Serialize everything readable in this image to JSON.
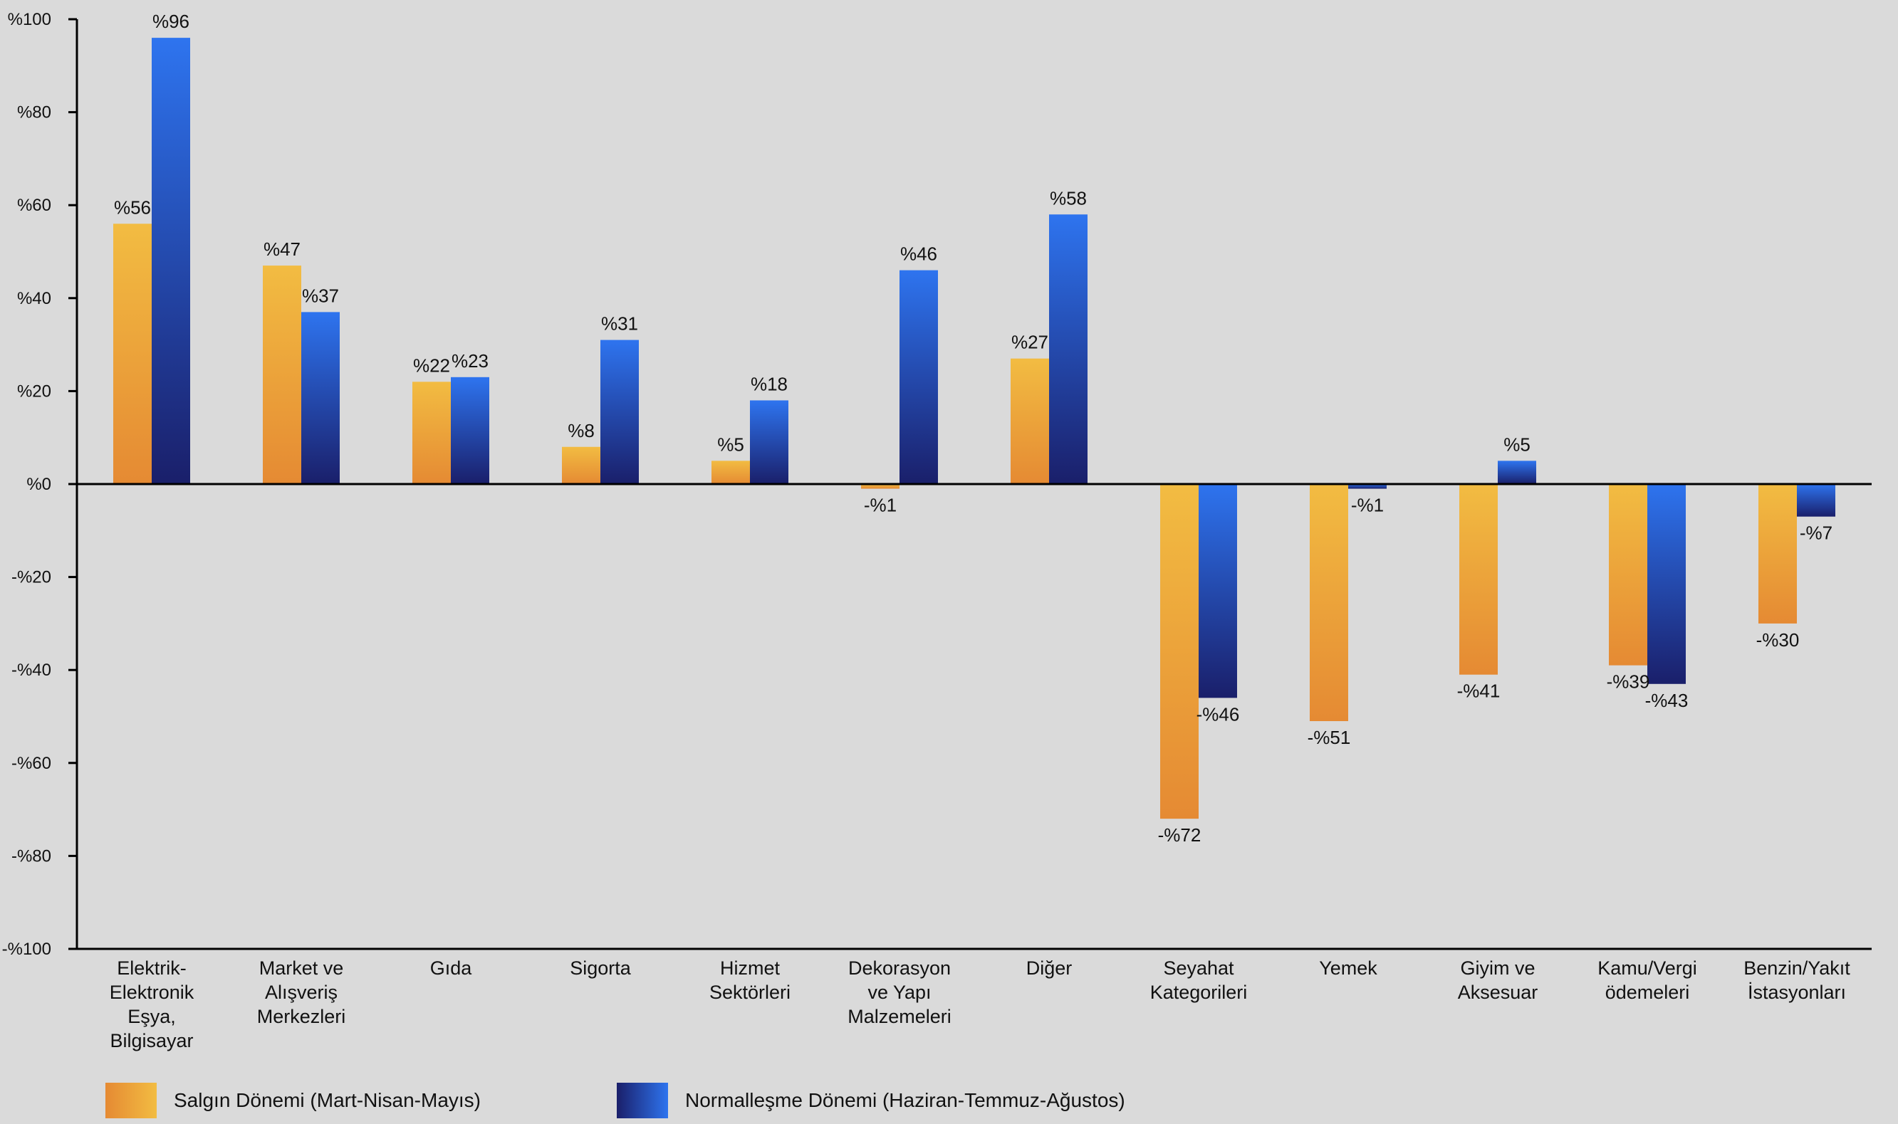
{
  "chart_data": {
    "type": "bar",
    "title": "",
    "xlabel": "",
    "ylabel": "",
    "ylim": [
      -100,
      100
    ],
    "y_ticks": [
      {
        "value": 100,
        "label": "%100"
      },
      {
        "value": 80,
        "label": "%80"
      },
      {
        "value": 60,
        "label": "%60"
      },
      {
        "value": 40,
        "label": "%40"
      },
      {
        "value": 20,
        "label": "%20"
      },
      {
        "value": 0,
        "label": "%0"
      },
      {
        "value": -20,
        "label": "-%20"
      },
      {
        "value": -40,
        "label": "-%40"
      },
      {
        "value": -60,
        "label": "-%60"
      },
      {
        "value": -80,
        "label": "-%80"
      },
      {
        "value": -100,
        "label": "-%100"
      }
    ],
    "grid": false,
    "legend_position": "bottom-left",
    "categories": [
      [
        "Elektrik-",
        "Elektronik",
        "Eşya,",
        "Bilgisayar"
      ],
      [
        "Market ve",
        "Alışveriş",
        "Merkezleri"
      ],
      [
        "Gıda"
      ],
      [
        "Sigorta"
      ],
      [
        "Hizmet",
        "Sektörleri"
      ],
      [
        "Dekorasyon",
        "ve Yapı",
        "Malzemeleri"
      ],
      [
        "Diğer"
      ],
      [
        "Seyahat",
        "Kategorileri"
      ],
      [
        "Yemek"
      ],
      [
        "Giyim ve",
        "Aksesuar"
      ],
      [
        "Kamu/Vergi",
        "ödemeleri"
      ],
      [
        "Benzin/Yakıt",
        "İstasyonları"
      ]
    ],
    "series": [
      {
        "name": "Salgın Dönemi (Mart-Nisan-Mayıs)",
        "colors": {
          "light": "#f2bc42",
          "dark": "#e58a33"
        },
        "values": [
          56,
          47,
          22,
          8,
          5,
          -1,
          27,
          -72,
          -51,
          -41,
          -39,
          -30
        ],
        "labels": [
          "%56",
          "%47",
          "%22",
          "%8",
          "%5",
          "-%1",
          "%27",
          "-%72",
          "-%51",
          "-%41",
          "-%39",
          "-%30"
        ]
      },
      {
        "name": "Normalleşme Dönemi (Haziran-Temmuz-Ağustos)",
        "colors": {
          "light": "#2e74ef",
          "dark": "#1a1f6a"
        },
        "values": [
          96,
          37,
          23,
          31,
          18,
          46,
          58,
          -46,
          -1,
          5,
          -43,
          -7
        ],
        "labels": [
          "%96",
          "%37",
          "%23",
          "%31",
          "%18",
          "%46",
          "%58",
          "-%46",
          "-%1",
          "%5",
          "-%43",
          "-%7"
        ]
      }
    ]
  }
}
